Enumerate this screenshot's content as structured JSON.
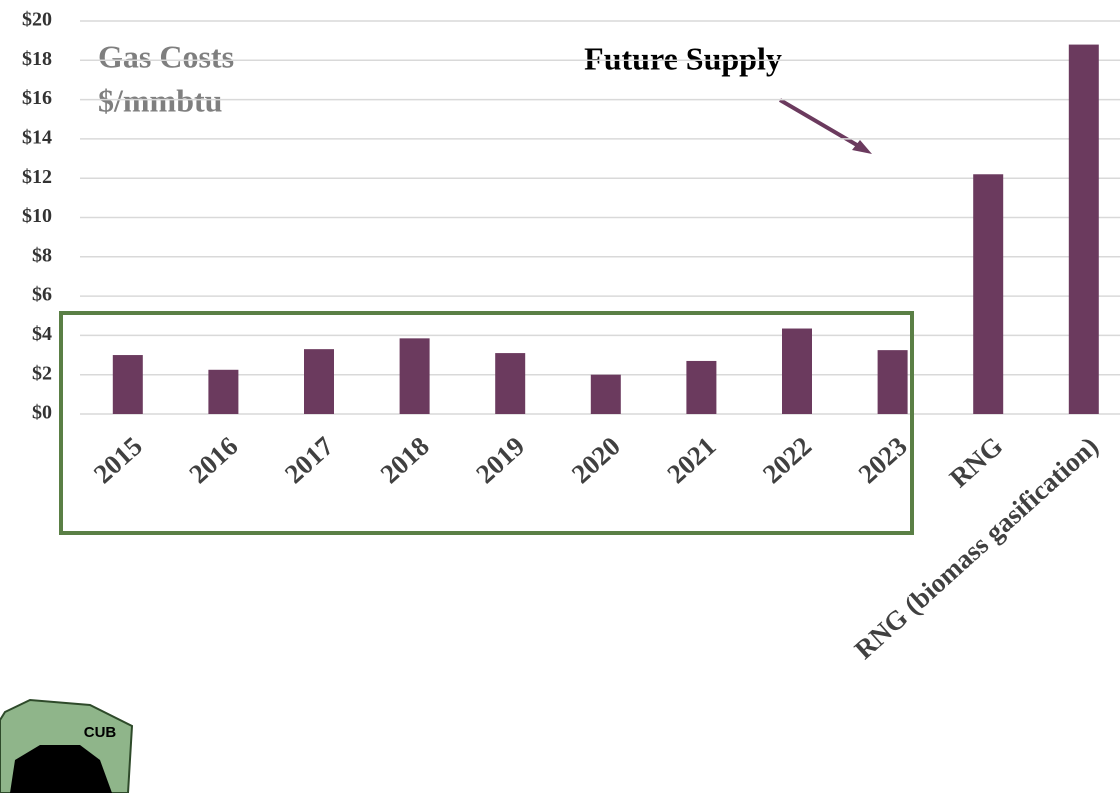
{
  "chart_data": {
    "type": "bar",
    "title": "Gas Costs",
    "subtitle": "$/mmbtu",
    "annotations": [
      "Future Supply"
    ],
    "categories": [
      "2015",
      "2016",
      "2017",
      "2018",
      "2019",
      "2020",
      "2021",
      "2022",
      "2023",
      "RNG",
      "RNG (biomass gasification)"
    ],
    "values": [
      3.0,
      2.25,
      3.3,
      3.85,
      3.1,
      2.0,
      2.7,
      4.35,
      3.25,
      12.2,
      18.8
    ],
    "color": "#6b3a5e",
    "ylim": [
      0,
      20
    ],
    "yticks": [
      {
        "value": 0,
        "label": "$0"
      },
      {
        "value": 2,
        "label": "$2"
      },
      {
        "value": 4,
        "label": "$4"
      },
      {
        "value": 6,
        "label": "$6"
      },
      {
        "value": 8,
        "label": "$8"
      },
      {
        "value": 10,
        "label": "$10"
      },
      {
        "value": 12,
        "label": "$12"
      },
      {
        "value": 14,
        "label": "$14"
      },
      {
        "value": 16,
        "label": "$16"
      },
      {
        "value": 18,
        "label": "$18"
      },
      {
        "value": 20,
        "label": "$20"
      }
    ],
    "grid": true
  },
  "logo": {
    "text": "CUB"
  }
}
